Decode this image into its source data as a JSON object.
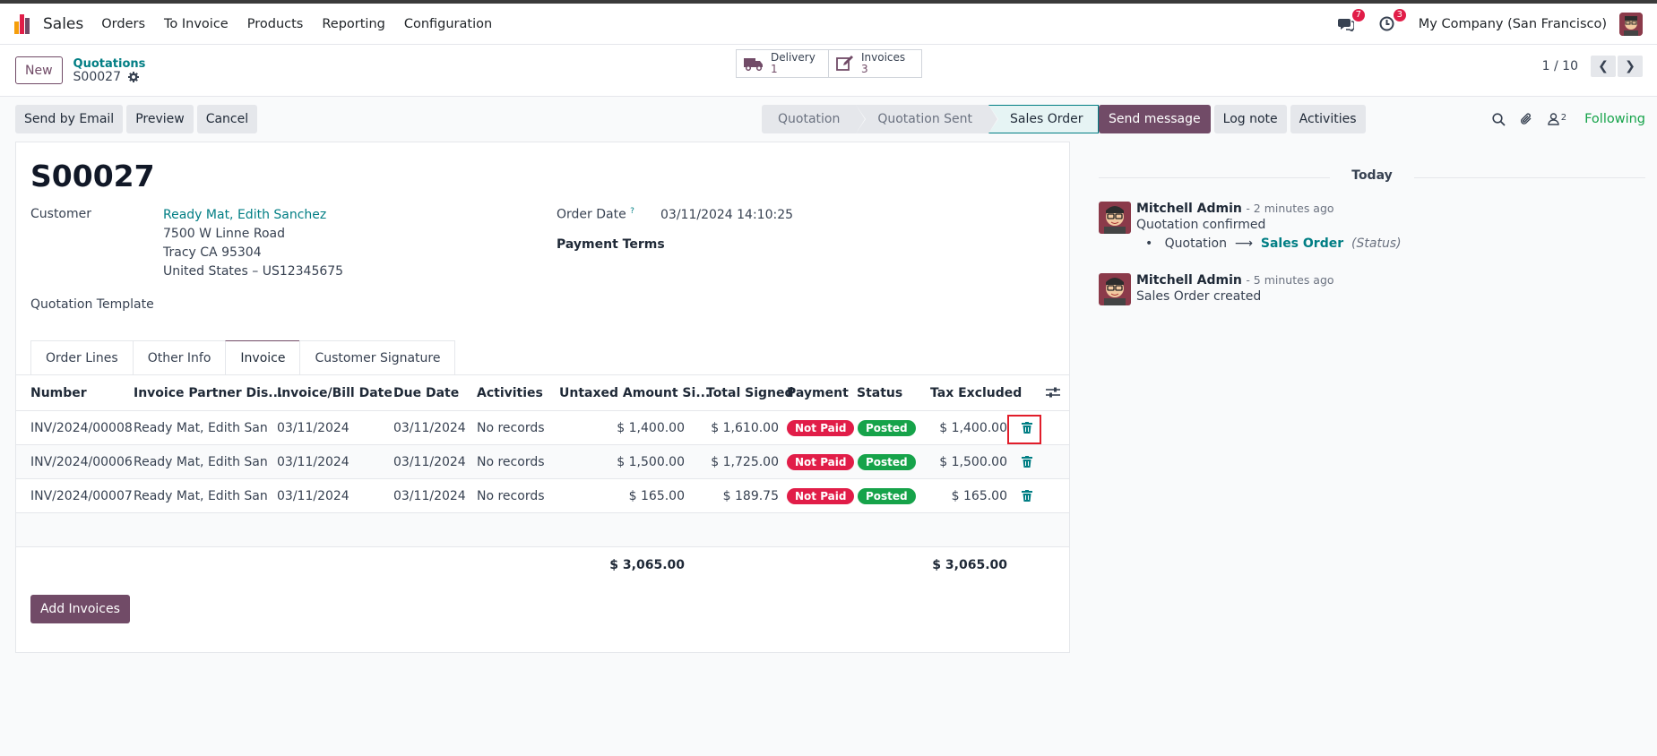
{
  "navbar": {
    "app_name": "Sales",
    "menu": [
      "Orders",
      "To Invoice",
      "Products",
      "Reporting",
      "Configuration"
    ],
    "messages_count": "7",
    "activities_count": "3",
    "company": "My Company (San Francisco)"
  },
  "control_panel": {
    "new_label": "New",
    "breadcrumb_parent": "Quotations",
    "breadcrumb_current": "S00027",
    "smart_buttons": [
      {
        "label": "Delivery",
        "count": "1",
        "icon": "truck-icon"
      },
      {
        "label": "Invoices",
        "count": "3",
        "icon": "pencil-square-icon"
      }
    ],
    "pager": "1 / 10"
  },
  "actions": [
    "Send by Email",
    "Preview",
    "Cancel"
  ],
  "statusbar": [
    "Quotation",
    "Quotation Sent",
    "Sales Order"
  ],
  "statusbar_active": "Sales Order",
  "form": {
    "title": "S00027",
    "customer_label": "Customer",
    "customer_name": "Ready Mat, Edith Sanchez",
    "address_1": "7500 W Linne Road",
    "address_2": "Tracy CA 95304",
    "address_3": "United States – US12345675",
    "template_label": "Quotation Template",
    "order_date_label": "Order Date",
    "order_date_help": "?",
    "order_date": "03/11/2024 14:10:25",
    "payment_terms_label": "Payment Terms",
    "tabs": [
      "Order Lines",
      "Other Info",
      "Invoice",
      "Customer Signature"
    ],
    "active_tab": "Invoice"
  },
  "invoice_table": {
    "columns": [
      "Number",
      "Invoice Partner Dis...",
      "Invoice/Bill Date",
      "Due Date",
      "Activities",
      "Untaxed Amount Si...",
      "Total Signed",
      "Payment",
      "Status",
      "Tax Excluded"
    ],
    "rows": [
      {
        "number": "INV/2024/00008",
        "partner": "Ready Mat, Edith San...",
        "invoice_date": "03/11/2024",
        "due_date": "03/11/2024",
        "activities": "No records",
        "untaxed": "$ 1,400.00",
        "total": "$ 1,610.00",
        "payment": "Not Paid",
        "status": "Posted",
        "tax_excluded": "$ 1,400.00"
      },
      {
        "number": "INV/2024/00006",
        "partner": "Ready Mat, Edith San...",
        "invoice_date": "03/11/2024",
        "due_date": "03/11/2024",
        "activities": "No records",
        "untaxed": "$ 1,500.00",
        "total": "$ 1,725.00",
        "payment": "Not Paid",
        "status": "Posted",
        "tax_excluded": "$ 1,500.00"
      },
      {
        "number": "INV/2024/00007",
        "partner": "Ready Mat, Edith San...",
        "invoice_date": "03/11/2024",
        "due_date": "03/11/2024",
        "activities": "No records",
        "untaxed": "$ 165.00",
        "total": "$ 189.75",
        "payment": "Not Paid",
        "status": "Posted",
        "tax_excluded": "$ 165.00"
      }
    ],
    "total_untaxed": "$ 3,065.00",
    "total_tax_excluded": "$ 3,065.00",
    "add_button": "Add Invoices"
  },
  "chatter": {
    "send_message": "Send message",
    "log_note": "Log note",
    "activities": "Activities",
    "followers_count": "2",
    "following": "Following",
    "today": "Today",
    "messages": [
      {
        "author": "Mitchell Admin",
        "time": "- 2 minutes ago",
        "body": "Quotation confirmed",
        "change_from": "Quotation",
        "change_to": "Sales Order",
        "change_field": "(Status)"
      },
      {
        "author": "Mitchell Admin",
        "time": "- 5 minutes ago",
        "body": "Sales Order created"
      }
    ]
  },
  "colors": {
    "brand": "#714b67",
    "link": "#017e84",
    "danger": "#e11d48",
    "success": "#16a34a"
  }
}
